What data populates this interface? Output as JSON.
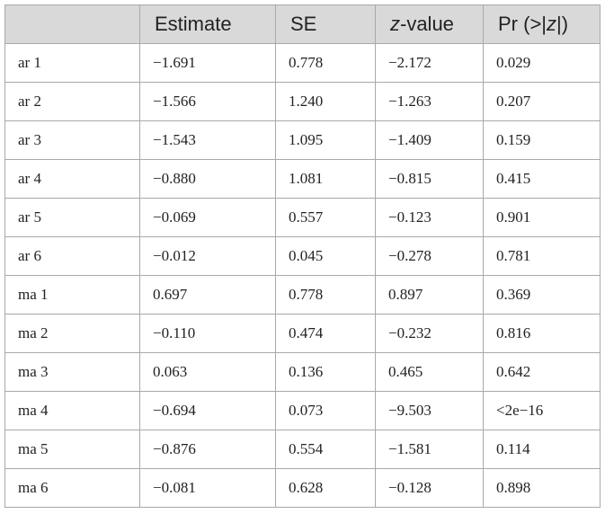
{
  "table": {
    "headers": [
      "",
      "Estimate",
      "SE",
      "z-value",
      "Pr (>|z|)"
    ],
    "header_parts": {
      "zvalue_italic": "z",
      "zvalue_rest": "-value",
      "pr_prefix": "Pr (>|",
      "pr_italic": "z",
      "pr_suffix": "|)"
    },
    "rows": [
      [
        "ar 1",
        "−1.691",
        "0.778",
        "−2.172",
        "0.029"
      ],
      [
        "ar 2",
        "−1.566",
        "1.240",
        "−1.263",
        "0.207"
      ],
      [
        "ar 3",
        "−1.543",
        "1.095",
        "−1.409",
        "0.159"
      ],
      [
        "ar 4",
        "−0.880",
        "1.081",
        "−0.815",
        "0.415"
      ],
      [
        "ar 5",
        "−0.069",
        "0.557",
        "−0.123",
        "0.901"
      ],
      [
        "ar 6",
        "−0.012",
        "0.045",
        "−0.278",
        "0.781"
      ],
      [
        "ma 1",
        "0.697",
        "0.778",
        "0.897",
        "0.369"
      ],
      [
        "ma 2",
        "−0.110",
        "0.474",
        "−0.232",
        "0.816"
      ],
      [
        "ma 3",
        "0.063",
        "0.136",
        "0.465",
        "0.642"
      ],
      [
        "ma 4",
        "−0.694",
        "0.073",
        "−9.503",
        "<2e−16"
      ],
      [
        "ma 5",
        "−0.876",
        "0.554",
        "−1.581",
        "0.114"
      ],
      [
        "ma 6",
        "−0.081",
        "0.628",
        "−0.128",
        "0.898"
      ]
    ]
  },
  "colors": {
    "header_bg": "#d9d9d9",
    "border": "#a9a9a9",
    "text": "#222222"
  }
}
